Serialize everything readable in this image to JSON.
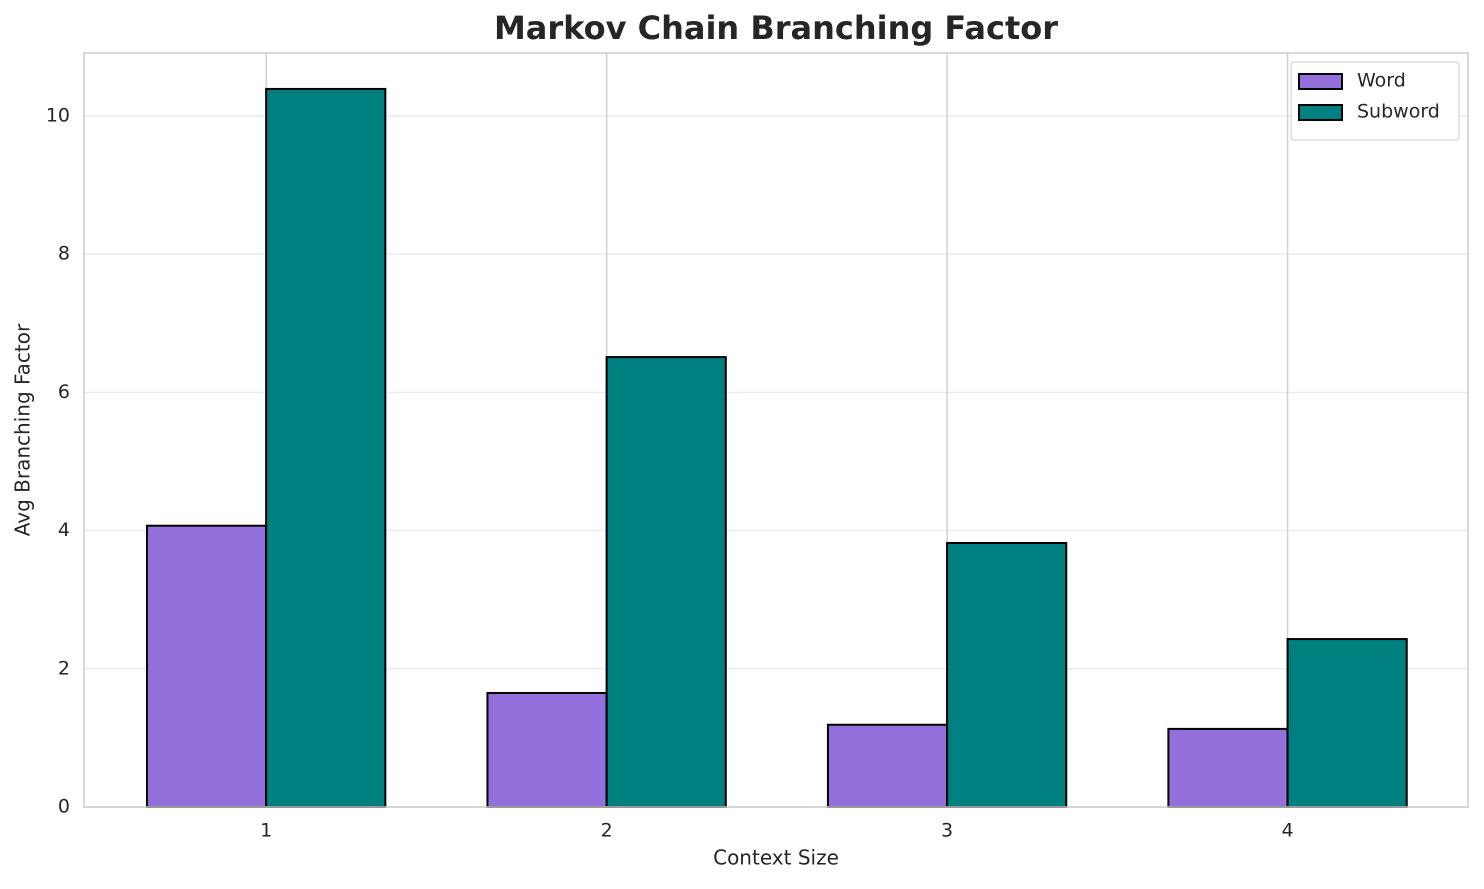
{
  "chart_data": {
    "type": "bar",
    "title": "Markov Chain Branching Factor",
    "xlabel": "Context Size",
    "ylabel": "Avg Branching Factor",
    "x": [
      1,
      2,
      3,
      4
    ],
    "series": [
      {
        "name": "Word",
        "color": "#9370db",
        "values": [
          4.07,
          1.65,
          1.19,
          1.13
        ]
      },
      {
        "name": "Subword",
        "color": "#008080",
        "values": [
          10.39,
          6.51,
          3.82,
          2.43
        ]
      }
    ],
    "xlim": [
      0.465,
      4.53
    ],
    "xticks": [
      1,
      2,
      3,
      4
    ],
    "ylim": [
      0,
      10.91
    ],
    "yticks": [
      0,
      2,
      4,
      6,
      8,
      10
    ],
    "grid": true,
    "legend": "upper right"
  }
}
